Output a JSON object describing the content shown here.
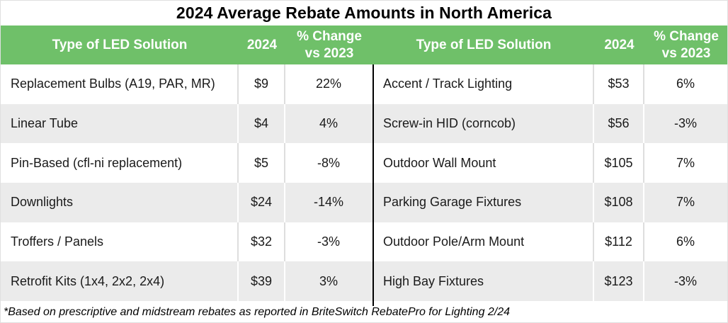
{
  "title": "2024 Average Rebate Amounts in North America",
  "footnote": "*Based on prescriptive and midstream rebates as reported in BriteSwitch RebatePro for Lighting 2/24",
  "colors": {
    "header_green": "#6FC069",
    "alt_row_gray": "#EBEBEB",
    "separator_gray": "#DEDEDE",
    "divider_black": "#000000",
    "header_text": "#FFFFFF",
    "body_text": "#1A1A1A"
  },
  "chart_data": {
    "type": "table",
    "title": "2024 Average Rebate Amounts in North America",
    "columns": [
      "Type of LED Solution",
      "2024",
      "% Change vs 2023"
    ],
    "change_header_line1": "% Change",
    "change_header_line2": "vs 2023",
    "left_rows": [
      {
        "label": "Replacement Bulbs (A19, PAR, MR)",
        "amount": "$9",
        "amount_usd": 9,
        "change": "22%",
        "change_pct": 22
      },
      {
        "label": "Linear Tube",
        "amount": "$4",
        "amount_usd": 4,
        "change": "4%",
        "change_pct": 4
      },
      {
        "label": "Pin-Based (cfl-ni replacement)",
        "amount": "$5",
        "amount_usd": 5,
        "change": "-8%",
        "change_pct": -8
      },
      {
        "label": "Downlights",
        "amount": "$24",
        "amount_usd": 24,
        "change": "-14%",
        "change_pct": -14
      },
      {
        "label": "Troffers / Panels",
        "amount": "$32",
        "amount_usd": 32,
        "change": "-3%",
        "change_pct": -3
      },
      {
        "label": "Retrofit Kits (1x4, 2x2, 2x4)",
        "amount": "$39",
        "amount_usd": 39,
        "change": "3%",
        "change_pct": 3
      }
    ],
    "right_rows": [
      {
        "label": "Accent / Track Lighting",
        "amount": "$53",
        "amount_usd": 53,
        "change": "6%",
        "change_pct": 6
      },
      {
        "label": "Screw-in HID (corncob)",
        "amount": "$56",
        "amount_usd": 56,
        "change": "-3%",
        "change_pct": -3
      },
      {
        "label": "Outdoor Wall Mount",
        "amount": "$105",
        "amount_usd": 105,
        "change": "7%",
        "change_pct": 7
      },
      {
        "label": "Parking Garage Fixtures",
        "amount": "$108",
        "amount_usd": 108,
        "change": "7%",
        "change_pct": 7
      },
      {
        "label": "Outdoor Pole/Arm Mount",
        "amount": "$112",
        "amount_usd": 112,
        "change": "6%",
        "change_pct": 6
      },
      {
        "label": "High Bay Fixtures",
        "amount": "$123",
        "amount_usd": 123,
        "change": "-3%",
        "change_pct": -3
      }
    ],
    "footnote": "*Based on prescriptive and midstream rebates as reported in BriteSwitch RebatePro for Lighting 2/24"
  }
}
